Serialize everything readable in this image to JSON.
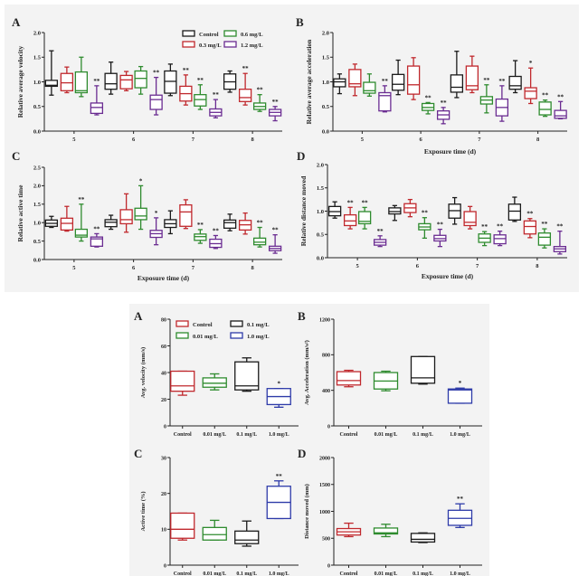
{
  "figures": [
    {
      "id": "top",
      "legend": [
        {
          "label": "Control",
          "color": "#1a1a1a"
        },
        {
          "label": "0.3 mg/L",
          "color": "#c0282d"
        },
        {
          "label": "0.6 mg/L",
          "color": "#2e8b2e"
        },
        {
          "label": "1.2 mg/L",
          "color": "#6a2c91"
        }
      ]
    },
    {
      "id": "bottom",
      "legend": [
        {
          "label": "Control",
          "color": "#c0282d"
        },
        {
          "label": "0.1 mg/L",
          "color": "#1a1a1a"
        },
        {
          "label": "0.01 mg/L",
          "color": "#2e8b2e"
        },
        {
          "label": "1.0 mg/L",
          "color": "#2d3aa8"
        }
      ]
    }
  ],
  "chart_data": [
    {
      "panel": "A",
      "figure": "top",
      "type": "box",
      "ylabel": "Relative average velocity",
      "xlabel": "",
      "ylim": [
        0,
        2.0
      ],
      "yticks": [
        "0.0",
        "0.5",
        "1.0",
        "1.5",
        "2.0"
      ],
      "categories": [
        "5",
        "6",
        "7",
        "8"
      ],
      "series_names": [
        "Control",
        "0.3 mg/L",
        "0.6 mg/L",
        "1.2 mg/L"
      ],
      "colors": [
        "#1a1a1a",
        "#c0282d",
        "#2e8b2e",
        "#6a2c91"
      ],
      "boxes": [
        [
          [
            0.73,
            0.91,
            0.93,
            1.03,
            1.63,
            ""
          ],
          [
            0.78,
            0.82,
            0.98,
            1.17,
            1.3,
            ""
          ],
          [
            0.7,
            0.78,
            0.82,
            1.2,
            1.5,
            ""
          ],
          [
            0.33,
            0.36,
            0.48,
            0.57,
            0.92,
            "**"
          ]
        ],
        [
          [
            0.75,
            0.85,
            0.96,
            1.17,
            1.4,
            ""
          ],
          [
            0.82,
            0.86,
            1.04,
            1.13,
            1.21,
            ""
          ],
          [
            0.75,
            0.88,
            1.07,
            1.22,
            1.31,
            ""
          ],
          [
            0.33,
            0.44,
            0.64,
            0.73,
            1.09,
            "**"
          ]
        ],
        [
          [
            0.72,
            0.77,
            1.01,
            1.22,
            1.36,
            ""
          ],
          [
            0.53,
            0.61,
            0.76,
            0.91,
            1.14,
            "**"
          ],
          [
            0.44,
            0.51,
            0.64,
            0.74,
            0.94,
            "**"
          ],
          [
            0.27,
            0.31,
            0.38,
            0.45,
            0.64,
            "**"
          ]
        ],
        [
          [
            0.79,
            0.85,
            1.0,
            1.16,
            1.22,
            ""
          ],
          [
            0.53,
            0.6,
            0.68,
            0.85,
            1.17,
            "**"
          ],
          [
            0.4,
            0.44,
            0.5,
            0.57,
            0.74,
            "**"
          ],
          [
            0.21,
            0.31,
            0.38,
            0.44,
            0.5,
            "**"
          ]
        ]
      ]
    },
    {
      "panel": "B",
      "figure": "top",
      "type": "box",
      "ylabel": "Relative average acceleration",
      "xlabel": "Exposure time (d)",
      "ylim": [
        0,
        2.0
      ],
      "yticks": [
        "0.0",
        "0.5",
        "1.0",
        "1.5",
        "2.0"
      ],
      "categories": [
        "5",
        "6",
        "7",
        "8"
      ],
      "series_names": [
        "Control",
        "0.3 mg/L",
        "0.6 mg/L",
        "1.2 mg/L"
      ],
      "colors": [
        "#1a1a1a",
        "#c0282d",
        "#2e8b2e",
        "#6a2c91"
      ],
      "boxes": [
        [
          [
            0.76,
            0.9,
            1.0,
            1.06,
            1.16,
            ""
          ],
          [
            0.72,
            0.9,
            0.96,
            1.25,
            1.36,
            ""
          ],
          [
            0.71,
            0.77,
            0.82,
            0.99,
            1.16,
            ""
          ],
          [
            0.39,
            0.41,
            0.72,
            0.78,
            0.92,
            "**"
          ]
        ],
        [
          [
            0.74,
            0.83,
            0.95,
            1.15,
            1.44,
            ""
          ],
          [
            0.64,
            0.75,
            0.94,
            1.32,
            1.49,
            ""
          ],
          [
            0.35,
            0.42,
            0.48,
            0.56,
            0.58,
            "**"
          ],
          [
            0.15,
            0.24,
            0.33,
            0.41,
            0.48,
            "**"
          ]
        ],
        [
          [
            0.68,
            0.79,
            0.89,
            1.14,
            1.62,
            ""
          ],
          [
            0.78,
            0.84,
            0.92,
            1.32,
            1.52,
            ""
          ],
          [
            0.37,
            0.55,
            0.63,
            0.7,
            0.94,
            "**"
          ],
          [
            0.2,
            0.31,
            0.48,
            0.65,
            0.92,
            "**"
          ]
        ],
        [
          [
            0.78,
            0.85,
            0.92,
            1.11,
            1.43,
            ""
          ],
          [
            0.56,
            0.66,
            0.81,
            0.88,
            1.28,
            "*"
          ],
          [
            0.3,
            0.33,
            0.44,
            0.59,
            0.63,
            "**"
          ],
          [
            0.25,
            0.26,
            0.31,
            0.42,
            0.6,
            "**"
          ]
        ]
      ]
    },
    {
      "panel": "C",
      "figure": "top",
      "type": "box",
      "ylabel": "Relative active time",
      "xlabel": "Exposure time (d)",
      "ylim": [
        0,
        2.5
      ],
      "yticks": [
        "0.0",
        "0.5",
        "1.0",
        "1.5",
        "2.0",
        "2.5"
      ],
      "categories": [
        "5",
        "6",
        "7",
        "8"
      ],
      "series_names": [
        "Control",
        "0.3 mg/L",
        "0.6 mg/L",
        "1.2 mg/L"
      ],
      "colors": [
        "#1a1a1a",
        "#c0282d",
        "#2e8b2e",
        "#6a2c91"
      ],
      "boxes": [
        [
          [
            0.87,
            0.9,
            0.98,
            1.07,
            1.17,
            ""
          ],
          [
            0.77,
            0.8,
            0.98,
            1.12,
            1.44,
            ""
          ],
          [
            0.5,
            0.61,
            0.66,
            0.82,
            1.5,
            "**"
          ],
          [
            0.34,
            0.36,
            0.56,
            0.61,
            0.7,
            "**"
          ]
        ],
        [
          [
            0.82,
            0.89,
            1.01,
            1.08,
            1.2,
            ""
          ],
          [
            0.74,
            0.97,
            1.08,
            1.35,
            1.78,
            ""
          ],
          [
            0.82,
            1.08,
            1.18,
            1.39,
            2.0,
            "*"
          ],
          [
            0.4,
            0.6,
            0.7,
            0.79,
            1.13,
            "*"
          ]
        ],
        [
          [
            0.7,
            0.87,
            0.97,
            1.08,
            1.32,
            ""
          ],
          [
            0.84,
            0.9,
            1.29,
            1.48,
            1.62,
            ""
          ],
          [
            0.44,
            0.52,
            0.62,
            0.69,
            0.81,
            "**"
          ],
          [
            0.3,
            0.33,
            0.43,
            0.55,
            0.65,
            "**"
          ]
        ],
        [
          [
            0.78,
            0.85,
            1.0,
            1.07,
            1.23,
            ""
          ],
          [
            0.69,
            0.8,
            0.94,
            1.06,
            1.26,
            ""
          ],
          [
            0.34,
            0.4,
            0.47,
            0.58,
            0.87,
            "**"
          ],
          [
            0.17,
            0.24,
            0.3,
            0.36,
            0.67,
            "**"
          ]
        ]
      ]
    },
    {
      "panel": "D",
      "figure": "top",
      "type": "box",
      "ylabel": "Relative distance moved",
      "xlabel": "Exposure time (d)",
      "ylim": [
        0,
        2.0
      ],
      "yticks": [
        "0.0",
        "0.5",
        "1.0",
        "1.5",
        "2.0"
      ],
      "categories": [
        "5",
        "6",
        "7",
        "8"
      ],
      "series_names": [
        "Control",
        "0.3 mg/L",
        "0.6 mg/L",
        "1.2 mg/L"
      ],
      "colors": [
        "#1a1a1a",
        "#c0282d",
        "#2e8b2e",
        "#6a2c91"
      ],
      "boxes": [
        [
          [
            0.85,
            0.9,
            0.99,
            1.1,
            1.2,
            ""
          ],
          [
            0.62,
            0.69,
            0.79,
            0.92,
            1.08,
            "**"
          ],
          [
            0.62,
            0.73,
            0.78,
            0.99,
            1.08,
            "**"
          ],
          [
            0.24,
            0.27,
            0.33,
            0.39,
            0.47,
            "**"
          ]
        ],
        [
          [
            0.8,
            0.94,
            0.99,
            1.07,
            1.12,
            ""
          ],
          [
            0.88,
            0.97,
            1.07,
            1.16,
            1.25,
            ""
          ],
          [
            0.42,
            0.6,
            0.66,
            0.73,
            0.86,
            "**"
          ],
          [
            0.24,
            0.36,
            0.41,
            0.48,
            0.61,
            "**"
          ]
        ],
        [
          [
            0.72,
            0.85,
            1.01,
            1.15,
            1.29,
            ""
          ],
          [
            0.62,
            0.69,
            0.76,
            0.99,
            1.1,
            ""
          ],
          [
            0.26,
            0.33,
            0.42,
            0.51,
            0.56,
            "**"
          ],
          [
            0.26,
            0.3,
            0.41,
            0.49,
            0.57,
            "**"
          ]
        ],
        [
          [
            0.78,
            0.81,
            1.0,
            1.15,
            1.3,
            ""
          ],
          [
            0.43,
            0.51,
            0.67,
            0.79,
            0.84,
            "**"
          ],
          [
            0.21,
            0.27,
            0.44,
            0.53,
            0.62,
            "**"
          ],
          [
            0.08,
            0.13,
            0.19,
            0.24,
            0.57,
            "**"
          ]
        ]
      ]
    },
    {
      "panel": "A",
      "figure": "bottom",
      "type": "box",
      "ylabel": "Avg. velocity (mm/s)",
      "xlabel": "",
      "ylim": [
        0,
        80
      ],
      "yticks": [
        "0",
        "20",
        "40",
        "60",
        "80"
      ],
      "categories": [
        "Control",
        "0.01 mg/L",
        "0.1 mg/L",
        "1.0 mg/L"
      ],
      "colors": [
        "#c0282d",
        "#2e8b2e",
        "#1a1a1a",
        "#2d3aa8"
      ],
      "boxes": [
        [
          23,
          26,
          30,
          41,
          41,
          ""
        ],
        [
          27,
          29,
          32,
          36,
          39,
          ""
        ],
        [
          26,
          27,
          30,
          48,
          51,
          ""
        ],
        [
          14,
          16,
          22,
          28,
          28,
          "*"
        ]
      ]
    },
    {
      "panel": "B",
      "figure": "bottom",
      "type": "box",
      "ylabel": "Avg. Acceleration (mm/s²)",
      "xlabel": "",
      "ylim": [
        0,
        1200
      ],
      "yticks": [
        "0",
        "400",
        "800",
        "1200"
      ],
      "categories": [
        "Control",
        "0.01 mg/L",
        "0.1 mg/L",
        "1.0 mg/L"
      ],
      "colors": [
        "#c0282d",
        "#2e8b2e",
        "#1a1a1a",
        "#2d3aa8"
      ],
      "boxes": [
        [
          440,
          460,
          510,
          610,
          625,
          ""
        ],
        [
          395,
          415,
          505,
          600,
          615,
          ""
        ],
        [
          470,
          480,
          540,
          780,
          780,
          ""
        ],
        [
          255,
          255,
          405,
          415,
          425,
          "*"
        ]
      ]
    },
    {
      "panel": "C",
      "figure": "bottom",
      "type": "box",
      "ylabel": "Active time (%)",
      "xlabel": "",
      "ylim": [
        0,
        30
      ],
      "yticks": [
        "0",
        "10",
        "20",
        "30"
      ],
      "categories": [
        "Control",
        "0.01 mg/L",
        "0.1 mg/L",
        "1.0 mg/L"
      ],
      "colors": [
        "#c0282d",
        "#2e8b2e",
        "#1a1a1a",
        "#2d3aa8"
      ],
      "boxes": [
        [
          7,
          7.5,
          10,
          14.5,
          14.5,
          ""
        ],
        [
          7,
          7,
          8.5,
          10.5,
          12.5,
          ""
        ],
        [
          5.3,
          6,
          7,
          9.5,
          12.3,
          ""
        ],
        [
          13,
          13,
          17.5,
          22,
          23.5,
          "**"
        ]
      ]
    },
    {
      "panel": "D",
      "figure": "bottom",
      "type": "box",
      "ylabel": "Distance moved (mm)",
      "xlabel": "",
      "ylim": [
        0,
        2000
      ],
      "yticks": [
        "0",
        "500",
        "1000",
        "1500",
        "2000"
      ],
      "categories": [
        "Control",
        "0.01 mg/L",
        "0.1 mg/L",
        "1.0 mg/L"
      ],
      "colors": [
        "#c0282d",
        "#2e8b2e",
        "#1a1a1a",
        "#2d3aa8"
      ],
      "boxes": [
        [
          530,
          560,
          620,
          680,
          780,
          ""
        ],
        [
          530,
          580,
          600,
          690,
          760,
          ""
        ],
        [
          420,
          430,
          480,
          590,
          600,
          ""
        ],
        [
          700,
          740,
          870,
          1020,
          1140,
          "**"
        ]
      ]
    }
  ]
}
